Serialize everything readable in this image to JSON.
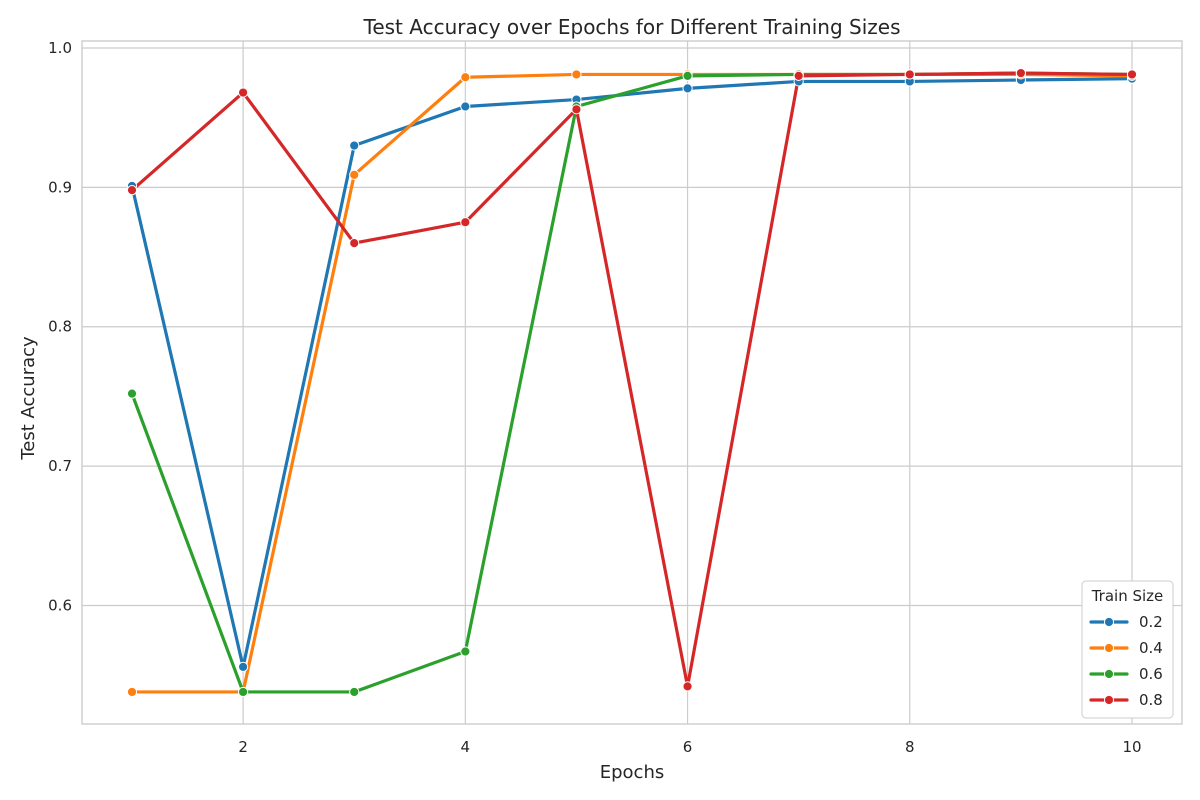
{
  "chart_data": {
    "type": "line",
    "title": "Test Accuracy over Epochs for Different Training Sizes",
    "xlabel": "Epochs",
    "ylabel": "Test Accuracy",
    "xlim": [
      0.55,
      10.45
    ],
    "ylim": [
      0.515,
      1.005
    ],
    "x_ticks": [
      2,
      4,
      6,
      8,
      10
    ],
    "y_ticks": [
      0.6,
      0.7,
      0.8,
      0.9,
      1.0
    ],
    "x_tick_labels": [
      "2",
      "4",
      "6",
      "8",
      "10"
    ],
    "y_tick_labels": [
      "0.6",
      "0.7",
      "0.8",
      "0.9",
      "1.0"
    ],
    "grid": true,
    "legend": {
      "title": "Train Size",
      "position": "lower-right"
    },
    "x": [
      1,
      2,
      3,
      4,
      5,
      6,
      7,
      8,
      9,
      10
    ],
    "series": [
      {
        "name": "0.2",
        "color": "#1f77b4",
        "values": [
          0.901,
          0.556,
          0.93,
          0.958,
          0.963,
          0.971,
          0.976,
          0.976,
          0.977,
          0.978
        ]
      },
      {
        "name": "0.4",
        "color": "#ff7f0e",
        "values": [
          0.538,
          0.538,
          0.909,
          0.979,
          0.981,
          0.981,
          0.981,
          0.981,
          0.981,
          0.98
        ]
      },
      {
        "name": "0.6",
        "color": "#2ca02c",
        "values": [
          0.752,
          0.538,
          0.538,
          0.567,
          0.958,
          0.98,
          0.981,
          0.981,
          0.982,
          0.981
        ]
      },
      {
        "name": "0.8",
        "color": "#d62728",
        "values": [
          0.898,
          0.968,
          0.86,
          0.875,
          0.956,
          0.542,
          0.98,
          0.981,
          0.982,
          0.981
        ]
      }
    ]
  }
}
